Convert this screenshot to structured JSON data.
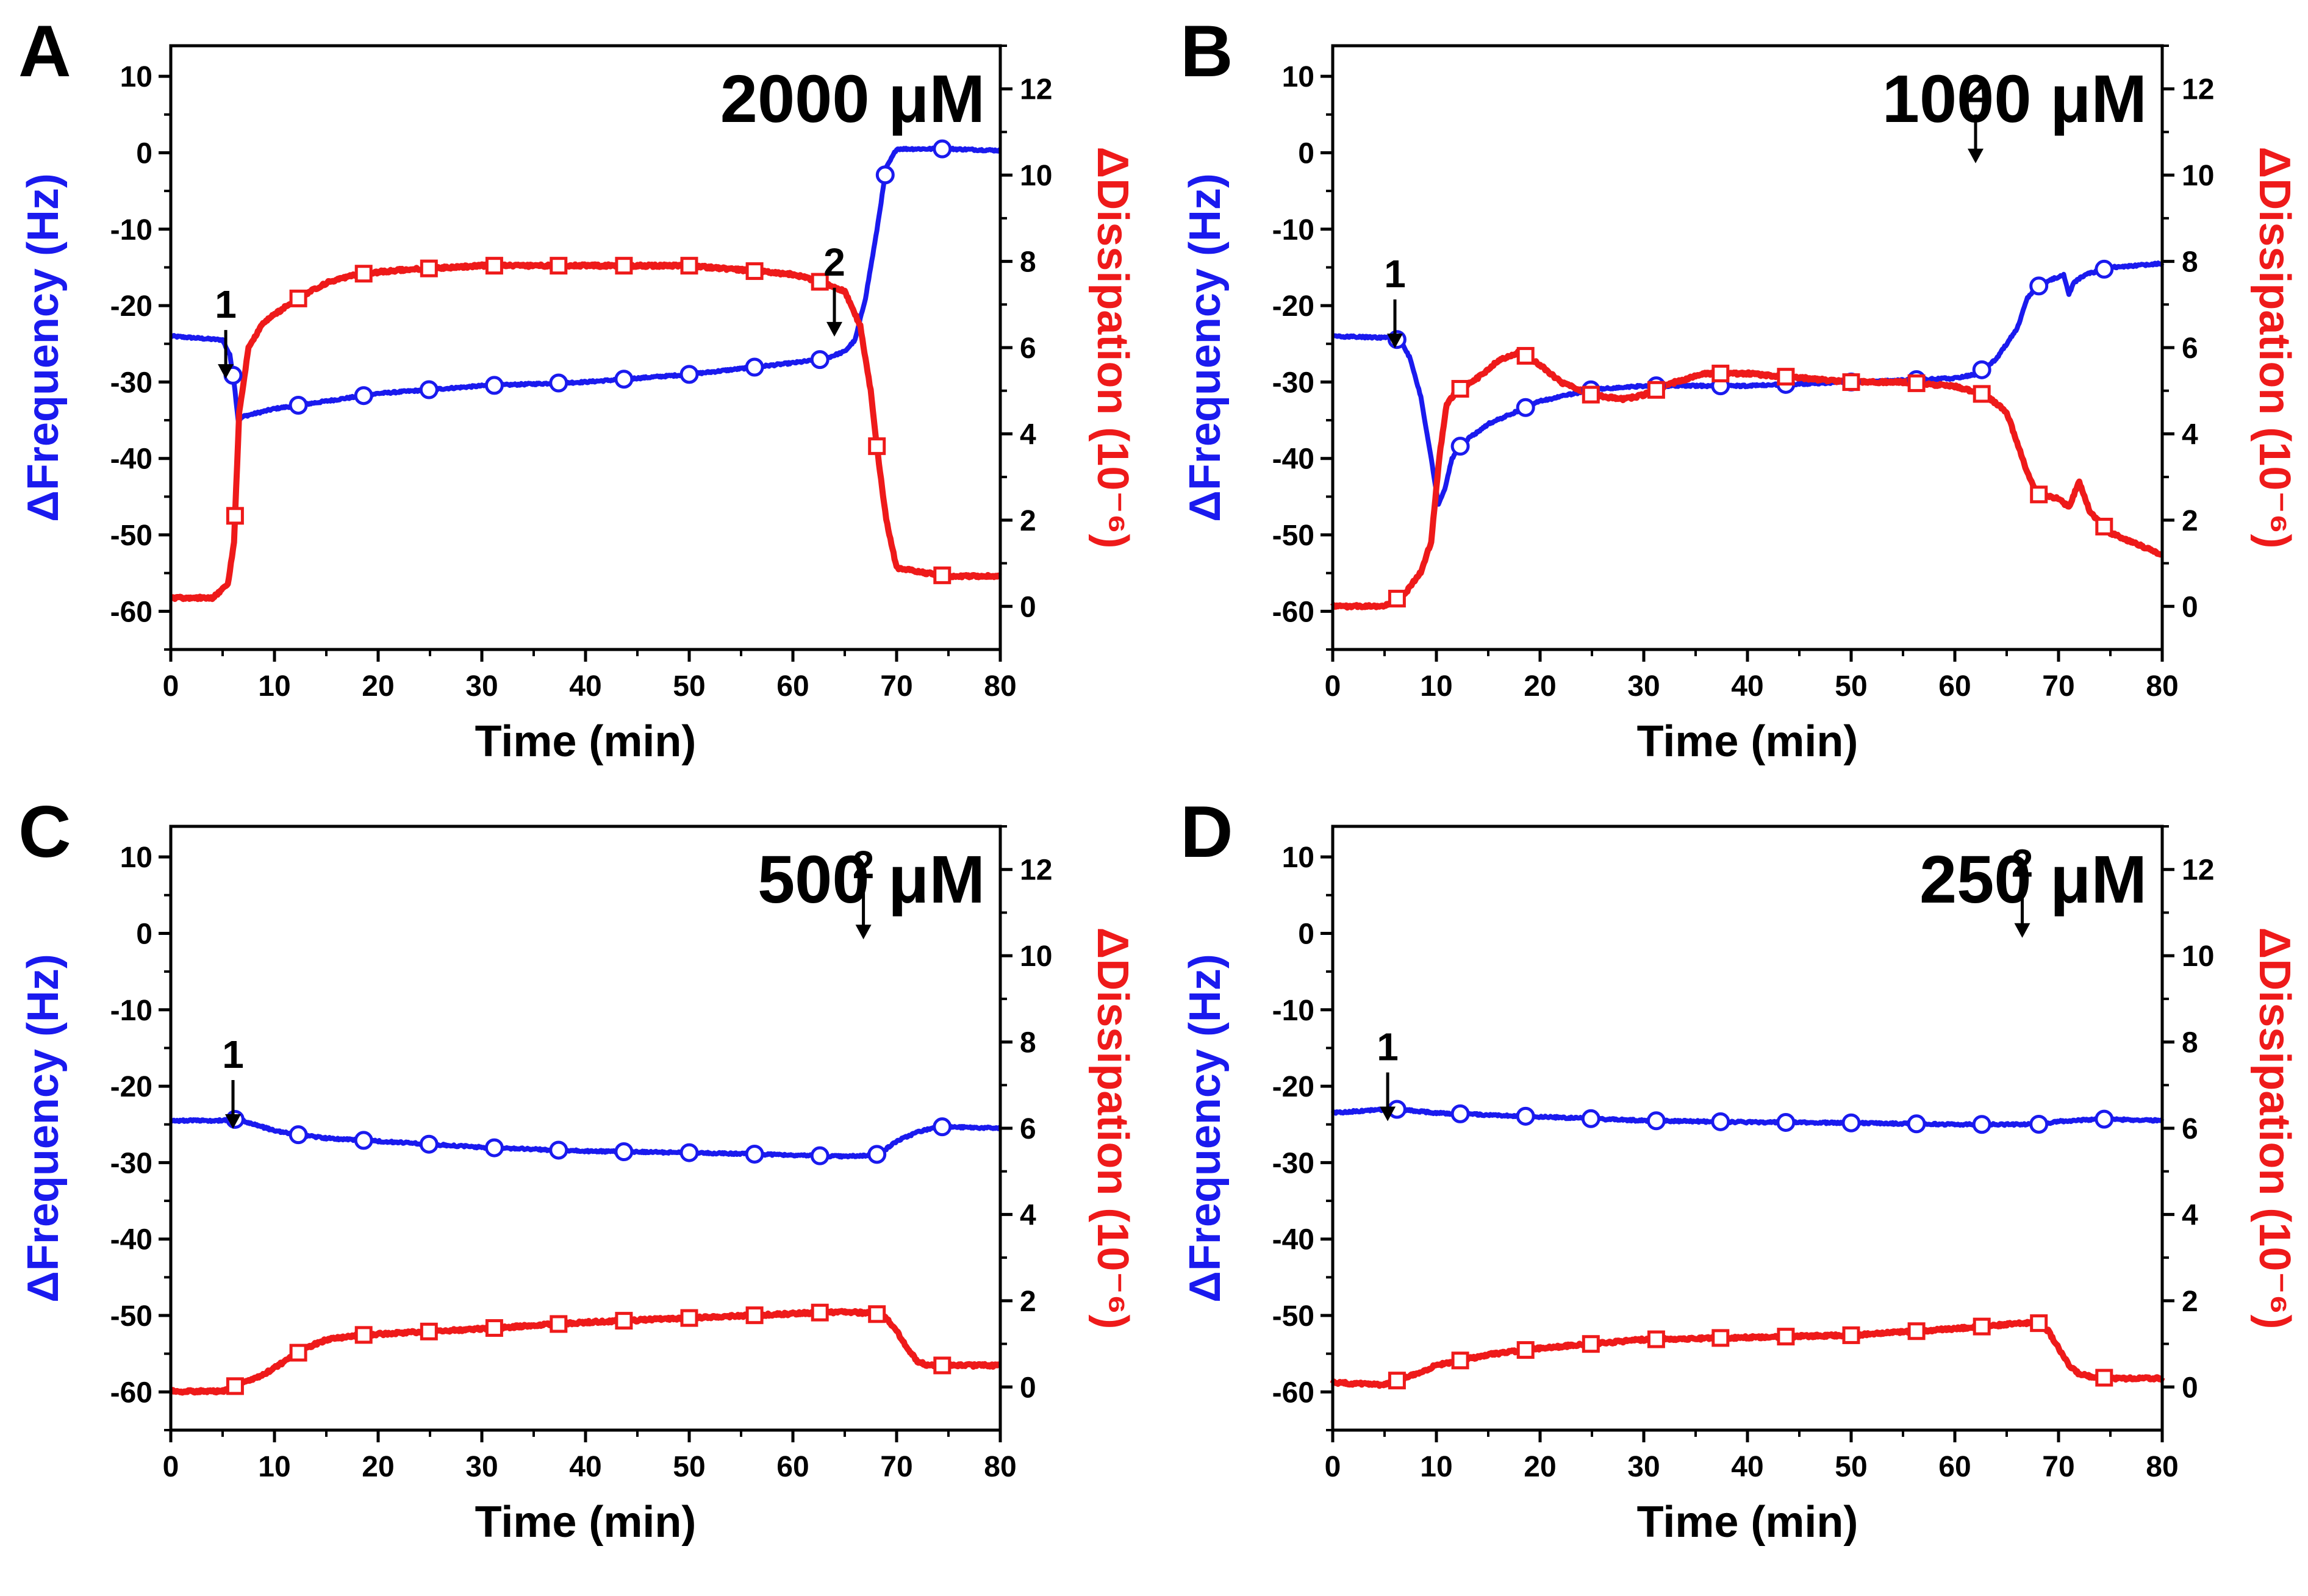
{
  "colors": {
    "frequency": "#1a1aee",
    "dissipation": "#ee1a1a",
    "axis": "#000000"
  },
  "chart_data": [
    {
      "type": "line",
      "panel": "A",
      "title": "2000 μM",
      "xlabel": "Time (min)",
      "ylabel_left": "ΔFrequency (Hz)",
      "ylabel_right": "ΔDissipation (10⁻⁶)",
      "xlim": [
        0,
        80
      ],
      "ylim_left": [
        -65,
        14
      ],
      "ylim_right": [
        -1,
        13
      ],
      "xticks": [
        "0",
        "10",
        "20",
        "30",
        "40",
        "50",
        "60",
        "70",
        "80"
      ],
      "yticks_left": [
        "10",
        "0",
        "-10",
        "-20",
        "-30",
        "-40",
        "-50",
        "-60"
      ],
      "yticks_right": [
        "0",
        "2",
        "4",
        "6",
        "8",
        "10",
        "12"
      ],
      "annotations": [
        {
          "text": "1",
          "x": 5.3,
          "y": -22
        },
        {
          "text": "2",
          "x": 64,
          "y": 7.6
        }
      ],
      "series": [
        {
          "name": "ΔFrequency",
          "axis": "left",
          "marker": "circle",
          "x": [
            0,
            5,
            5.7,
            6.1,
            6.5,
            7,
            10,
            15,
            20,
            30,
            40,
            50,
            60,
            63,
            65,
            66,
            67,
            68,
            69,
            70,
            71,
            72,
            75,
            80
          ],
          "y": [
            -24,
            -24.5,
            -26.5,
            -30,
            -35,
            -34.5,
            -33.5,
            -32.5,
            -31.5,
            -30.5,
            -30,
            -29,
            -27.5,
            -27,
            -26,
            -24.5,
            -19,
            -11,
            -2,
            0.5,
            0.5,
            0.5,
            0.5,
            0.3
          ],
          "markers_x": [
            6,
            12.3,
            18.6,
            24.9,
            31.2,
            37.4,
            43.7,
            50,
            56.3,
            62.6,
            68.9,
            74.4
          ]
        },
        {
          "name": "ΔDissipation",
          "axis": "right",
          "marker": "square",
          "x": [
            0,
            4,
            5.5,
            6.1,
            6.6,
            7.5,
            9,
            12,
            15,
            18,
            22,
            30,
            40,
            50,
            60,
            63,
            65,
            66.5,
            67.5,
            68.2,
            69,
            70,
            72,
            75,
            80
          ],
          "y": [
            0.2,
            0.2,
            0.5,
            1.5,
            4.5,
            6,
            6.6,
            7.1,
            7.5,
            7.7,
            7.8,
            7.9,
            7.9,
            7.9,
            7.7,
            7.5,
            7.3,
            6.5,
            5,
            3.5,
            2,
            0.9,
            0.8,
            0.7,
            0.7
          ],
          "markers_x": [
            6.2,
            12.3,
            18.6,
            24.9,
            31.2,
            37.4,
            43.7,
            50,
            56.3,
            62.6,
            68.1,
            74.4
          ]
        }
      ]
    },
    {
      "type": "line",
      "panel": "B",
      "title": "1000 μM",
      "xlabel": "Time (min)",
      "ylabel_left": "ΔFrequency (Hz)",
      "ylabel_right": "ΔDissipation (10⁻⁶)",
      "xlim": [
        0,
        80
      ],
      "ylim_left": [
        -65,
        14
      ],
      "ylim_right": [
        -1,
        13
      ],
      "xticks": [
        "0",
        "10",
        "20",
        "30",
        "40",
        "50",
        "60",
        "70",
        "80"
      ],
      "yticks_left": [
        "10",
        "0",
        "-10",
        "-20",
        "-30",
        "-40",
        "-50",
        "-60"
      ],
      "yticks_right": [
        "0",
        "2",
        "4",
        "6",
        "8",
        "10",
        "12"
      ],
      "annotations": [
        {
          "text": "1",
          "x": 6,
          "y": -18
        },
        {
          "text": "2",
          "x": 62,
          "y": 6.2
        }
      ],
      "series": [
        {
          "name": "ΔFrequency",
          "axis": "left",
          "marker": "circle",
          "x": [
            0,
            5,
            6.5,
            7.5,
            8.5,
            9.5,
            10.2,
            10.8,
            11.5,
            12.5,
            15,
            20,
            25,
            30,
            40,
            50,
            60,
            62,
            64,
            66,
            67,
            68,
            69.5,
            70.5,
            71,
            71.5,
            72.5,
            75,
            80
          ],
          "y": [
            -24,
            -24.2,
            -24.5,
            -27,
            -32,
            -40,
            -46,
            -44,
            -40,
            -38,
            -35.5,
            -32.5,
            -31,
            -30.5,
            -30.5,
            -30,
            -29.5,
            -29,
            -27,
            -23,
            -19,
            -17.5,
            -16.5,
            -16,
            -18.5,
            -17,
            -16,
            -15,
            -14.5
          ],
          "markers_x": [
            6.2,
            12.3,
            18.6,
            24.9,
            31.2,
            37.4,
            43.7,
            50,
            56.3,
            62.6,
            68.1,
            74.4
          ]
        },
        {
          "name": "ΔDissipation",
          "axis": "right",
          "marker": "square",
          "x": [
            0,
            5,
            7,
            8.5,
            9.5,
            10.3,
            11,
            12,
            14,
            16,
            18,
            20,
            22,
            25,
            28,
            30,
            33,
            36,
            40,
            45,
            50,
            55,
            60,
            63,
            65,
            66,
            67,
            68,
            70,
            71,
            72,
            73,
            75,
            80
          ],
          "y": [
            0,
            0,
            0.3,
            0.8,
            1.5,
            3.5,
            4.7,
            5,
            5.3,
            5.7,
            5.9,
            5.6,
            5.2,
            4.9,
            4.8,
            4.9,
            5.2,
            5.4,
            5.4,
            5.3,
            5.2,
            5.2,
            5.1,
            4.9,
            4.5,
            3.8,
            3.1,
            2.6,
            2.5,
            2.3,
            2.9,
            2.2,
            1.7,
            1.2
          ],
          "markers_x": [
            6.2,
            12.3,
            18.6,
            24.9,
            31.2,
            37.4,
            43.7,
            50,
            56.3,
            62.6,
            68.1,
            74.4
          ]
        }
      ]
    },
    {
      "type": "line",
      "panel": "C",
      "title": "500 μM",
      "xlabel": "Time (min)",
      "ylabel_left": "ΔFrequency (Hz)",
      "ylabel_right": "ΔDissipation (10⁻⁶)",
      "xlim": [
        0,
        80
      ],
      "ylim_left": [
        -65,
        14
      ],
      "ylim_right": [
        -1,
        13
      ],
      "xticks": [
        "0",
        "10",
        "20",
        "30",
        "40",
        "50",
        "60",
        "70",
        "80"
      ],
      "yticks_left": [
        "10",
        "0",
        "-10",
        "-20",
        "-30",
        "-40",
        "-50",
        "-60"
      ],
      "yticks_right": [
        "0",
        "2",
        "4",
        "6",
        "8",
        "10",
        "12"
      ],
      "annotations": [
        {
          "text": "1",
          "x": 6,
          "y": -18
        },
        {
          "text": "2",
          "x": 66.8,
          "y": 6.8
        }
      ],
      "series": [
        {
          "name": "ΔFrequency",
          "axis": "left",
          "marker": "circle",
          "x": [
            0,
            5,
            6.5,
            8,
            10,
            12,
            15,
            20,
            25,
            30,
            40,
            50,
            60,
            65,
            68,
            69,
            70,
            72,
            74,
            80
          ],
          "y": [
            -24.5,
            -24.5,
            -24.3,
            -25,
            -25.8,
            -26.3,
            -26.8,
            -27.2,
            -27.6,
            -28,
            -28.5,
            -28.7,
            -29,
            -29.2,
            -29,
            -28.2,
            -27.2,
            -26,
            -25.3,
            -25.5
          ],
          "markers_x": [
            6.2,
            12.3,
            18.6,
            24.9,
            31.2,
            37.4,
            43.7,
            50,
            56.3,
            62.6,
            68.1,
            74.4
          ]
        },
        {
          "name": "ΔDissipation",
          "axis": "right",
          "marker": "square",
          "x": [
            0,
            5,
            7,
            9,
            11,
            13,
            15,
            18,
            22,
            30,
            40,
            50,
            60,
            65,
            68,
            69,
            70,
            71,
            72,
            73,
            75,
            80
          ],
          "y": [
            -0.1,
            -0.1,
            0.1,
            0.3,
            0.6,
            0.9,
            1.1,
            1.2,
            1.25,
            1.35,
            1.5,
            1.6,
            1.7,
            1.75,
            1.7,
            1.6,
            1.3,
            0.9,
            0.6,
            0.5,
            0.5,
            0.5
          ],
          "markers_x": [
            6.2,
            12.3,
            18.6,
            24.9,
            31.2,
            37.4,
            43.7,
            50,
            56.3,
            62.6,
            68.1,
            74.4
          ]
        }
      ]
    },
    {
      "type": "line",
      "panel": "D",
      "title": "250 μM",
      "xlabel": "Time (min)",
      "ylabel_left": "ΔFrequency (Hz)",
      "ylabel_right": "ΔDissipation (10⁻⁶)",
      "xlim": [
        0,
        80
      ],
      "ylim_left": [
        -65,
        14
      ],
      "ylim_right": [
        -1,
        13
      ],
      "xticks": [
        "0",
        "10",
        "20",
        "30",
        "40",
        "50",
        "60",
        "70",
        "80"
      ],
      "yticks_left": [
        "10",
        "0",
        "-10",
        "-20",
        "-30",
        "-40",
        "-50",
        "-60"
      ],
      "yticks_right": [
        "0",
        "2",
        "4",
        "6",
        "8",
        "10",
        "12"
      ],
      "annotations": [
        {
          "text": "1",
          "x": 5.3,
          "y": -17
        },
        {
          "text": "2",
          "x": 66.5,
          "y": 7
        }
      ],
      "series": [
        {
          "name": "ΔFrequency",
          "axis": "left",
          "marker": "circle",
          "x": [
            0,
            3,
            6,
            10,
            20,
            30,
            40,
            50,
            60,
            65,
            68,
            70,
            74,
            80
          ],
          "y": [
            -23.5,
            -23.2,
            -23,
            -23.5,
            -24,
            -24.5,
            -24.7,
            -24.8,
            -25,
            -25,
            -25,
            -24.6,
            -24.3,
            -24.5
          ],
          "markers_x": [
            6.2,
            12.3,
            18.6,
            24.9,
            31.2,
            37.4,
            43.7,
            50,
            56.3,
            62.6,
            68.1,
            74.4
          ]
        },
        {
          "name": "ΔDissipation",
          "axis": "right",
          "marker": "square",
          "x": [
            0,
            5,
            8,
            10,
            12,
            15,
            20,
            25,
            30,
            40,
            50,
            60,
            65,
            68,
            69,
            70,
            71,
            72,
            73,
            75,
            80
          ],
          "y": [
            0.1,
            0.05,
            0.3,
            0.5,
            0.6,
            0.75,
            0.9,
            1,
            1.1,
            1.15,
            1.2,
            1.35,
            1.45,
            1.5,
            1.3,
            0.9,
            0.5,
            0.3,
            0.25,
            0.2,
            0.2
          ],
          "markers_x": [
            6.2,
            12.3,
            18.6,
            24.9,
            31.2,
            37.4,
            43.7,
            50,
            56.3,
            62.6,
            68.1,
            74.4
          ]
        }
      ]
    }
  ]
}
